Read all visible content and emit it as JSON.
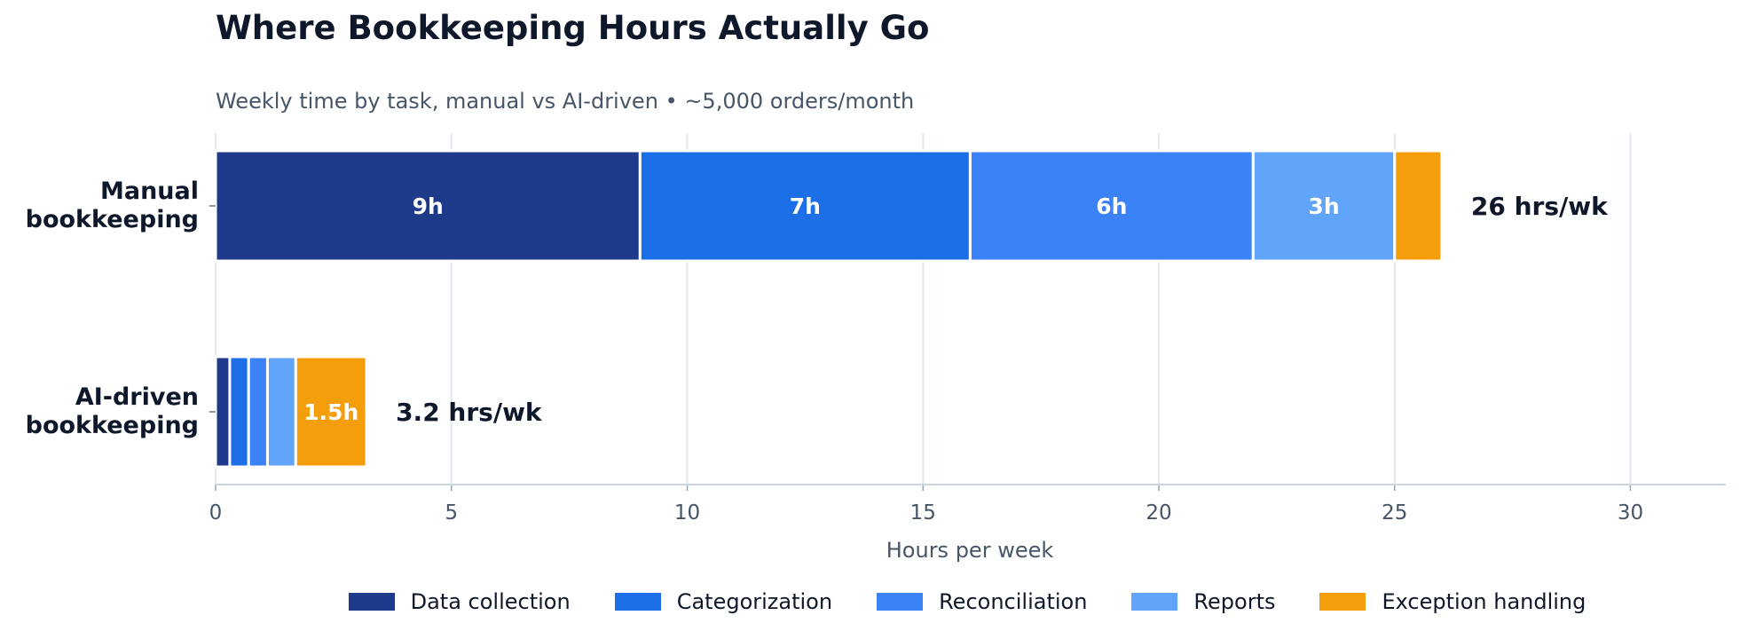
{
  "chart_data": {
    "type": "bar",
    "orientation": "horizontal",
    "stacked": true,
    "title": "Where Bookkeeping Hours Actually Go",
    "subtitle": "Weekly time by task, manual vs AI-driven  •  ~5,000 orders/month",
    "xlabel": "Hours per week",
    "ylabel": "",
    "xlim": [
      0,
      32
    ],
    "xticks": [
      0,
      5,
      10,
      15,
      20,
      25,
      30
    ],
    "grid": true,
    "legend_position": "bottom",
    "categories": [
      "Manual\nbookkeeping",
      "AI-driven\nbookkeeping"
    ],
    "series": [
      {
        "name": "Data collection",
        "color": "#1e3a8a",
        "values": [
          9,
          0.3
        ],
        "segment_labels": [
          "9h",
          ""
        ]
      },
      {
        "name": "Categorization",
        "color": "#1d6fe8",
        "values": [
          7,
          0.4
        ],
        "segment_labels": [
          "7h",
          ""
        ]
      },
      {
        "name": "Reconciliation",
        "color": "#3b82f6",
        "values": [
          6,
          0.4
        ],
        "segment_labels": [
          "6h",
          ""
        ]
      },
      {
        "name": "Reports",
        "color": "#60a5fa",
        "values": [
          3,
          0.6
        ],
        "segment_labels": [
          "3h",
          ""
        ]
      },
      {
        "name": "Exception handling",
        "color": "#f59e0b",
        "values": [
          1,
          1.5
        ],
        "segment_labels": [
          "",
          "1.5h"
        ]
      }
    ],
    "totals": [
      "26 hrs/wk",
      "3.2 hrs/wk"
    ]
  }
}
